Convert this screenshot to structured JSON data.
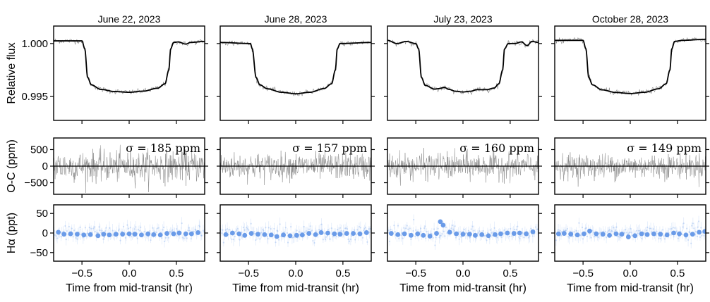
{
  "chart_data": {
    "type": "line",
    "layout_rows": [
      "flux",
      "residuals",
      "halpha"
    ],
    "x_range": [
      -0.8,
      0.8
    ],
    "x_ticks": [
      -0.5,
      0.0,
      0.5
    ],
    "x_tick_labels": [
      "−0.5",
      "0.0",
      "0.5"
    ],
    "xlabel": "Time from mid-transit (hr)",
    "rows": {
      "flux": {
        "ylabel": "Relative flux",
        "ylim": [
          0.99275,
          1.00165
        ],
        "yticks": [
          1.0,
          0.995
        ],
        "ytick_labels": [
          "1.000",
          "0.995"
        ],
        "data_color": "#888888",
        "model_color": "#000000"
      },
      "residuals": {
        "ylabel": "O-C (ppm)",
        "ylim": [
          -850,
          850
        ],
        "yticks": [
          500,
          0,
          -500
        ],
        "ytick_labels": [
          "500",
          "0",
          "−500"
        ],
        "data_color": "#888888"
      },
      "halpha": {
        "ylabel": "Hα (ppt)",
        "ylim": [
          -72,
          72
        ],
        "yticks": [
          50,
          0,
          -50
        ],
        "ytick_labels": [
          "50",
          "0",
          "−50"
        ],
        "point_color": "#6a9be8"
      }
    },
    "panels": [
      {
        "title": "June 22, 2023",
        "sigma_label": "σ = 185 ppm",
        "sigma_ppm": 185,
        "model": [
          [
            -0.8,
            1.00025
          ],
          [
            -0.5,
            1.00025
          ],
          [
            -0.47,
            0.9995
          ],
          [
            -0.44,
            0.9968
          ],
          [
            -0.4,
            0.9961
          ],
          [
            -0.3,
            0.99567
          ],
          [
            -0.15,
            0.99547
          ],
          [
            0.0,
            0.9954
          ],
          [
            0.15,
            0.99551
          ],
          [
            0.3,
            0.99578
          ],
          [
            0.38,
            0.9962
          ],
          [
            0.42,
            0.9975
          ],
          [
            0.44,
            0.9995
          ],
          [
            0.47,
            1.0001
          ],
          [
            0.52,
            1.00015
          ],
          [
            0.6,
            0.99995
          ],
          [
            0.65,
            1.0001
          ],
          [
            0.8,
            1.0002
          ]
        ],
        "halpha_bins": [
          [
            -0.75,
            2
          ],
          [
            -0.69,
            -3
          ],
          [
            -0.62,
            -2
          ],
          [
            -0.55,
            -3
          ],
          [
            -0.48,
            -5
          ],
          [
            -0.41,
            -4
          ],
          [
            -0.33,
            -7
          ],
          [
            -0.27,
            -3
          ],
          [
            -0.21,
            -5
          ],
          [
            -0.14,
            -3
          ],
          [
            -0.07,
            -3
          ],
          [
            0.0,
            -2
          ],
          [
            0.06,
            -3
          ],
          [
            0.13,
            -5
          ],
          [
            0.2,
            -2
          ],
          [
            0.26,
            -4
          ],
          [
            0.33,
            -5
          ],
          [
            0.4,
            -1
          ],
          [
            0.47,
            -2
          ],
          [
            0.53,
            0
          ],
          [
            0.6,
            -2
          ],
          [
            0.66,
            -2
          ],
          [
            0.73,
            1
          ]
        ]
      },
      {
        "title": "June 28, 2023",
        "sigma_label": "σ = 157 ppm",
        "sigma_ppm": 157,
        "model": [
          [
            -0.8,
            1.0001
          ],
          [
            -0.48,
            1.0
          ],
          [
            -0.46,
            0.9995
          ],
          [
            -0.42,
            0.9968
          ],
          [
            -0.38,
            0.9961
          ],
          [
            -0.3,
            0.99573
          ],
          [
            -0.15,
            0.9954
          ],
          [
            0.0,
            0.99526
          ],
          [
            0.15,
            0.9954
          ],
          [
            0.3,
            0.99575
          ],
          [
            0.38,
            0.9962
          ],
          [
            0.42,
            0.9975
          ],
          [
            0.44,
            0.9995
          ],
          [
            0.47,
            1.0
          ],
          [
            0.8,
            1.0001
          ]
        ],
        "halpha_bins": [
          [
            -0.74,
            -4
          ],
          [
            -0.67,
            0
          ],
          [
            -0.6,
            -2
          ],
          [
            -0.54,
            -6
          ],
          [
            -0.47,
            -1
          ],
          [
            -0.4,
            -3
          ],
          [
            -0.33,
            -4
          ],
          [
            -0.26,
            -5
          ],
          [
            -0.2,
            -9
          ],
          [
            -0.13,
            -5
          ],
          [
            -0.06,
            -7
          ],
          [
            0.01,
            -6
          ],
          [
            0.07,
            -5
          ],
          [
            0.14,
            -1
          ],
          [
            0.21,
            -4
          ],
          [
            0.27,
            1
          ],
          [
            0.34,
            0
          ],
          [
            0.41,
            -2
          ],
          [
            0.47,
            -3
          ],
          [
            0.54,
            -1
          ],
          [
            0.61,
            -1
          ],
          [
            0.68,
            -2
          ],
          [
            0.75,
            1
          ]
        ]
      },
      {
        "title": "July 23, 2023",
        "sigma_label": "σ = 160 ppm",
        "sigma_ppm": 160,
        "model": [
          [
            -0.8,
            1.0003
          ],
          [
            -0.7,
            1.0
          ],
          [
            -0.6,
            1.0002
          ],
          [
            -0.5,
            1.0
          ],
          [
            -0.47,
            0.9995
          ],
          [
            -0.44,
            0.9968
          ],
          [
            -0.4,
            0.99605
          ],
          [
            -0.3,
            0.9957
          ],
          [
            -0.25,
            0.99575
          ],
          [
            -0.2,
            0.99587
          ],
          [
            -0.15,
            0.99568
          ],
          [
            -0.08,
            0.9955
          ],
          [
            0.0,
            0.99543
          ],
          [
            0.08,
            0.9955
          ],
          [
            0.15,
            0.99565
          ],
          [
            0.25,
            0.99565
          ],
          [
            0.33,
            0.9958
          ],
          [
            0.38,
            0.9962
          ],
          [
            0.42,
            0.9975
          ],
          [
            0.44,
            0.9995
          ],
          [
            0.48,
            1.0
          ],
          [
            0.55,
            1.0
          ],
          [
            0.62,
            1.00015
          ],
          [
            0.68,
            0.9998
          ],
          [
            0.73,
            1.0002
          ],
          [
            0.8,
            1.0001
          ]
        ],
        "halpha_bins": [
          [
            -0.76,
            -1
          ],
          [
            -0.69,
            -4
          ],
          [
            -0.62,
            -2
          ],
          [
            -0.55,
            -6
          ],
          [
            -0.48,
            -2
          ],
          [
            -0.42,
            -6
          ],
          [
            -0.35,
            -8
          ],
          [
            -0.28,
            -1
          ],
          [
            -0.24,
            29
          ],
          [
            -0.21,
            20
          ],
          [
            -0.14,
            2
          ],
          [
            -0.07,
            -2
          ],
          [
            0.0,
            -3
          ],
          [
            0.07,
            -3
          ],
          [
            0.13,
            -6
          ],
          [
            0.2,
            -4
          ],
          [
            0.27,
            -7
          ],
          [
            0.34,
            -4
          ],
          [
            0.4,
            -2
          ],
          [
            0.47,
            0
          ],
          [
            0.54,
            -1
          ],
          [
            0.6,
            0
          ],
          [
            0.67,
            -2
          ],
          [
            0.74,
            3
          ]
        ]
      },
      {
        "title": "October 28, 2023",
        "sigma_label": "σ = 149 ppm",
        "sigma_ppm": 149,
        "model": [
          [
            -0.8,
            1.0003
          ],
          [
            -0.5,
            1.0003
          ],
          [
            -0.47,
            0.9995
          ],
          [
            -0.44,
            0.9968
          ],
          [
            -0.4,
            0.9961
          ],
          [
            -0.3,
            0.99563
          ],
          [
            -0.15,
            0.99538
          ],
          [
            0.0,
            0.99528
          ],
          [
            0.15,
            0.9954
          ],
          [
            0.3,
            0.99573
          ],
          [
            0.38,
            0.9962
          ],
          [
            0.42,
            0.9975
          ],
          [
            0.44,
            0.9995
          ],
          [
            0.47,
            1.0002
          ],
          [
            0.55,
            1.0003
          ],
          [
            0.8,
            1.0004
          ]
        ],
        "halpha_bins": [
          [
            -0.76,
            -2
          ],
          [
            -0.7,
            -1
          ],
          [
            -0.63,
            -3
          ],
          [
            -0.56,
            -5
          ],
          [
            -0.49,
            -2
          ],
          [
            -0.43,
            5
          ],
          [
            -0.36,
            -2
          ],
          [
            -0.29,
            -3
          ],
          [
            -0.22,
            -6
          ],
          [
            -0.15,
            -2
          ],
          [
            -0.09,
            -3
          ],
          [
            -0.02,
            -10
          ],
          [
            0.05,
            -7
          ],
          [
            0.12,
            -2
          ],
          [
            0.18,
            -4
          ],
          [
            0.25,
            -2
          ],
          [
            0.32,
            -3
          ],
          [
            0.39,
            -5
          ],
          [
            0.46,
            0
          ],
          [
            0.52,
            -2
          ],
          [
            0.59,
            -5
          ],
          [
            0.66,
            -3
          ],
          [
            0.73,
            2
          ],
          [
            0.79,
            4
          ]
        ]
      }
    ]
  }
}
